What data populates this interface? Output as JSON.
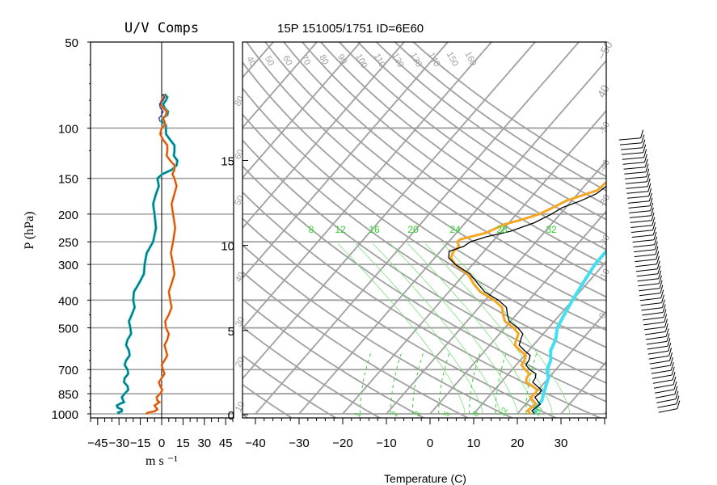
{
  "chart_data": [
    {
      "type": "line",
      "title": "U/V Comps",
      "xlabel": "m s ⁻¹",
      "ylabel": "P (hPa)",
      "xlim": [
        -50,
        50
      ],
      "x_ticks": [
        "−45",
        "−30",
        "−15",
        "0",
        "15",
        "30",
        "45"
      ],
      "p_range": [
        50,
        1000
      ],
      "p_ticks": [
        {
          "p": 50,
          "label": "50"
        },
        {
          "p": 100,
          "label": "100"
        },
        {
          "p": 150,
          "label": "150"
        },
        {
          "p": 200,
          "label": "200"
        },
        {
          "p": 250,
          "label": "250"
        },
        {
          "p": 300,
          "label": "300"
        },
        {
          "p": 400,
          "label": "400"
        },
        {
          "p": 500,
          "label": "500"
        },
        {
          "p": 700,
          "label": "700"
        },
        {
          "p": 850,
          "label": "850"
        },
        {
          "p": 1000,
          "label": "1000"
        }
      ],
      "series": [
        {
          "color": "#0c5a5a",
          "pressure": [
            1000,
            980,
            950,
            920,
            900,
            850,
            800,
            750,
            700,
            650,
            600,
            550,
            500,
            450,
            400,
            350,
            300,
            250,
            200,
            170,
            150,
            140,
            130,
            120,
            110,
            100,
            95,
            90,
            85,
            80,
            76
          ],
          "values": [
            -30,
            -28,
            -31,
            -29,
            -27,
            -26,
            -24,
            -26,
            -24,
            -25,
            -23,
            -24,
            -22,
            -21,
            -20,
            -16,
            -12,
            -6,
            -5,
            -4,
            -3,
            7,
            11,
            9,
            6,
            3,
            0,
            4,
            2,
            3,
            2
          ]
        },
        {
          "color": "#cc3333",
          "pressure": [
            1000,
            980,
            950,
            920,
            900,
            850,
            800,
            750,
            700,
            650,
            600,
            550,
            500,
            450,
            400,
            350,
            300,
            250,
            200,
            170,
            150,
            140,
            130,
            120,
            110,
            100,
            95,
            90,
            85,
            80,
            76
          ],
          "values": [
            -11,
            -5,
            -4,
            -3,
            -3,
            -1,
            -1,
            0,
            1,
            2,
            3,
            4,
            3,
            5,
            6,
            7,
            8,
            8,
            8,
            9,
            9,
            9,
            6,
            4,
            1,
            0,
            2,
            3,
            1,
            0,
            1
          ]
        },
        {
          "color": "#3a3a9a",
          "pressure": [
            95,
            90,
            85,
            80,
            76
          ],
          "values": [
            -1,
            0,
            -1,
            1,
            0
          ]
        }
      ]
    },
    {
      "type": "line",
      "title": "15P 151005/1751 ID=6E60",
      "xlabel": "Temperature (C)",
      "x_ticks": [
        "−40",
        "−30",
        "−20",
        "−10",
        "0",
        "10",
        "20",
        "30"
      ],
      "xlim": [
        -43,
        45
      ],
      "height_ticks": [
        {
          "km": 0,
          "label": "0"
        },
        {
          "km": 5,
          "label": "5"
        },
        {
          "km": 10,
          "label": "10"
        },
        {
          "km": 15,
          "label": "15"
        }
      ],
      "theta_labels": [
        "40",
        "50",
        "60",
        "70",
        "80",
        "90",
        "100",
        "110",
        "120",
        "130",
        "140",
        "150",
        "160"
      ],
      "rh_labels": [
        "80",
        "60",
        "50",
        "40",
        "30",
        "20",
        "10",
        "0",
        "-10",
        "-20",
        "-30",
        "-40",
        "-50"
      ],
      "moist_labels": [
        "8",
        "12",
        "16",
        "20",
        "24",
        "28",
        "32"
      ],
      "mixing_labels": [
        "1",
        "2",
        "3",
        "5",
        "8",
        "12",
        "20"
      ],
      "series": [
        {
          "name": "temperature",
          "color": "#000000",
          "pressure": [
            1000,
            950,
            900,
            850,
            800,
            750,
            700,
            650,
            600,
            550,
            500,
            450,
            400,
            350,
            300,
            270,
            250,
            230,
            200,
            180,
            160,
            150,
            140,
            130,
            120,
            110,
            100,
            95,
            90,
            85,
            80,
            76
          ],
          "values": [
            24,
            23,
            22,
            21,
            19,
            17,
            14,
            12,
            9,
            6,
            3,
            -2,
            -7,
            -15,
            -24,
            -28,
            -25,
            -18,
            -12,
            -8,
            -5,
            -4,
            -4,
            -3,
            -1,
            0,
            -3,
            -7,
            -8,
            -12,
            -15,
            -17
          ]
        },
        {
          "name": "dewpoint",
          "color": "#f5a623",
          "pressure": [
            1000,
            950,
            900,
            850,
            800,
            750,
            700,
            650,
            600,
            550,
            500,
            450,
            400,
            350,
            300,
            270,
            250,
            240,
            225,
            210,
            190,
            170,
            160,
            150,
            140,
            130,
            120,
            110,
            100,
            95,
            90,
            85,
            80
          ],
          "values": [
            23,
            22,
            21,
            20,
            18,
            15,
            13,
            11,
            8,
            5,
            2,
            -3,
            -8,
            -16,
            -24,
            -27,
            -28,
            -26,
            -22,
            -18,
            -13,
            -8,
            -6,
            -4,
            -3,
            -2,
            0,
            2,
            4,
            6,
            8,
            9,
            8
          ]
        },
        {
          "name": "parcel",
          "color": "#41dff0",
          "pressure": [
            1000,
            950,
            900,
            850,
            800,
            750,
            700,
            650,
            600,
            550,
            500,
            450,
            400,
            350,
            300,
            270,
            250,
            230,
            200,
            170,
            150,
            130,
            110,
            100,
            90,
            80,
            70,
            65
          ],
          "values": [
            24,
            23,
            23,
            22,
            21,
            20,
            18,
            17,
            15,
            14,
            12,
            11,
            10,
            9,
            8,
            8,
            9,
            13,
            19,
            24,
            28,
            32,
            36,
            40,
            43,
            47,
            52,
            55
          ]
        }
      ]
    }
  ]
}
